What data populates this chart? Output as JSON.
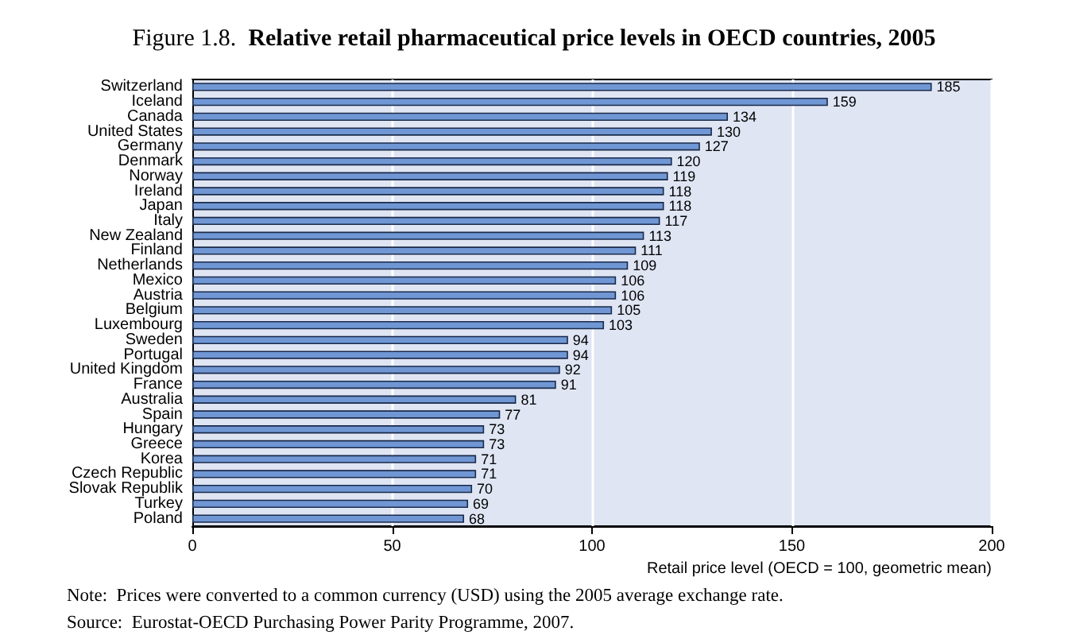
{
  "chart_data": {
    "type": "bar",
    "orientation": "horizontal",
    "title": "Figure 1.8.  Relative retail pharmaceutical price levels in OECD countries, 2005",
    "xlabel": "Retail price level (OECD = 100, geometric mean)",
    "categories": [
      "Switzerland",
      "Iceland",
      "Canada",
      "United States",
      "Germany",
      "Denmark",
      "Norway",
      "Ireland",
      "Japan",
      "Italy",
      "New Zealand",
      "Finland",
      "Netherlands",
      "Mexico",
      "Austria",
      "Belgium",
      "Luxembourg",
      "Sweden",
      "Portugal",
      "United Kingdom",
      "France",
      "Australia",
      "Spain",
      "Hungary",
      "Greece",
      "Korea",
      "Czech Republic",
      "Slovak Republik",
      "Turkey",
      "Poland"
    ],
    "values": [
      185,
      159,
      134,
      130,
      127,
      120,
      119,
      118,
      118,
      117,
      113,
      111,
      109,
      106,
      106,
      105,
      103,
      94,
      94,
      92,
      91,
      81,
      77,
      73,
      73,
      71,
      71,
      70,
      69,
      68
    ],
    "color": "#7097d4",
    "data_labels": true,
    "xlim": [
      0,
      200
    ],
    "xticks": [
      0,
      50,
      100,
      150,
      200
    ],
    "grid": "x",
    "annotations": [
      "Note:  Prices were converted to a common currency (USD) using the 2005 average exchange rate.",
      "Source:  Eurostat-OECD Purchasing Power Parity Programme, 2007."
    ]
  }
}
